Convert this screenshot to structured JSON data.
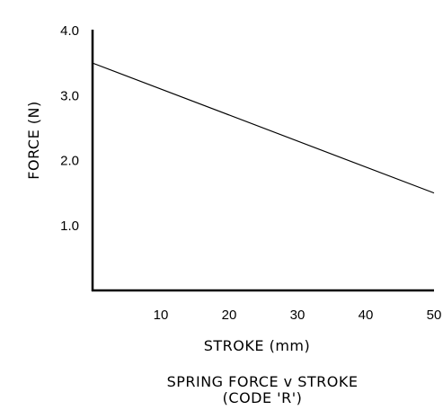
{
  "chart_data": {
    "type": "line",
    "title": "SPRING FORCE v STROKE",
    "subtitle": "(CODE 'R')",
    "xlabel": "STROKE (mm)",
    "ylabel": "FORCE (N)",
    "xlim": [
      0,
      50
    ],
    "ylim": [
      0,
      4.0
    ],
    "x_ticks": [
      10,
      20,
      30,
      40,
      50
    ],
    "x_tick_labels": [
      "10",
      "20",
      "30",
      "40",
      "50"
    ],
    "y_ticks": [
      1.0,
      2.0,
      3.0,
      4.0
    ],
    "y_tick_labels": [
      "1.0",
      "2.0",
      "3.0",
      "4.0"
    ],
    "grid": false,
    "series": [
      {
        "x": [
          0,
          50
        ],
        "y": [
          3.5,
          1.5
        ],
        "color": "#000000"
      }
    ]
  }
}
